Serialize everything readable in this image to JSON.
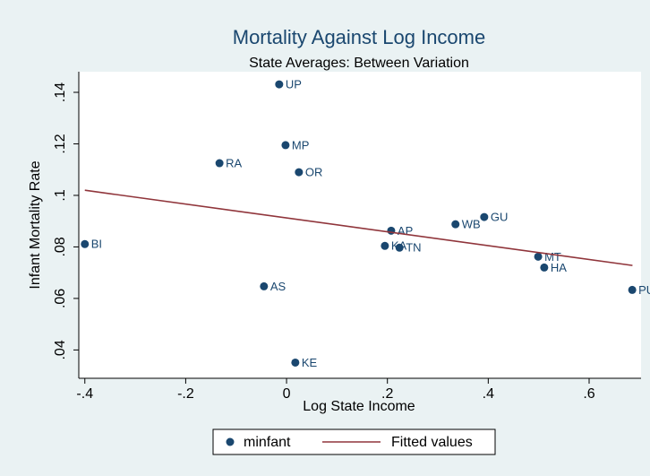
{
  "chart_data": {
    "type": "scatter",
    "title": "Mortality Against Log Income",
    "subtitle": "State Averages: Between Variation",
    "x_label": "Log State Income",
    "y_label": "Infant Mortality Rate",
    "xlim": [
      -0.412,
      0.703
    ],
    "ylim": [
      0.029,
      0.148
    ],
    "xticks": [
      {
        "value": -0.4,
        "label": "-.4"
      },
      {
        "value": -0.2,
        "label": "-.2"
      },
      0,
      {
        "value": 0.2,
        "label": ".2"
      },
      {
        "value": 0.4,
        "label": ".4"
      },
      {
        "value": 0.6,
        "label": ".6"
      }
    ],
    "yticks": [
      {
        "value": 0.04,
        "label": ".04"
      },
      {
        "value": 0.06,
        "label": ".06"
      },
      {
        "value": 0.08,
        "label": ".08"
      },
      {
        "value": 0.1,
        "label": ".1"
      },
      {
        "value": 0.12,
        "label": ".12"
      },
      {
        "value": 0.14,
        "label": ".14"
      }
    ],
    "grid": false,
    "series": [
      {
        "name": "minfant",
        "type": "scatter",
        "color": "#1a476f",
        "point_labels": [
          "UP",
          "MP",
          "RA",
          "OR",
          "AP",
          "WB",
          "GU",
          "BI",
          "KA",
          "TN",
          "MT",
          "HA",
          "PU",
          "AS",
          "KE"
        ],
        "x": [
          -0.0146,
          -0.002,
          -0.133,
          0.0245,
          0.2075,
          0.335,
          0.392,
          -0.4,
          0.195,
          0.224,
          0.499,
          0.511,
          0.6855,
          -0.0448,
          0.0174
        ],
        "values": [
          0.1431,
          0.1195,
          0.1125,
          0.109,
          0.0863,
          0.0888,
          0.0916,
          0.0811,
          0.0804,
          0.0797,
          0.0762,
          0.072,
          0.0633,
          0.0647,
          0.0351
        ]
      },
      {
        "name": "Fitted values",
        "type": "line",
        "color": "#90353b",
        "x": [
          -0.4,
          0.686
        ],
        "values": [
          0.102,
          0.0728
        ]
      }
    ]
  }
}
